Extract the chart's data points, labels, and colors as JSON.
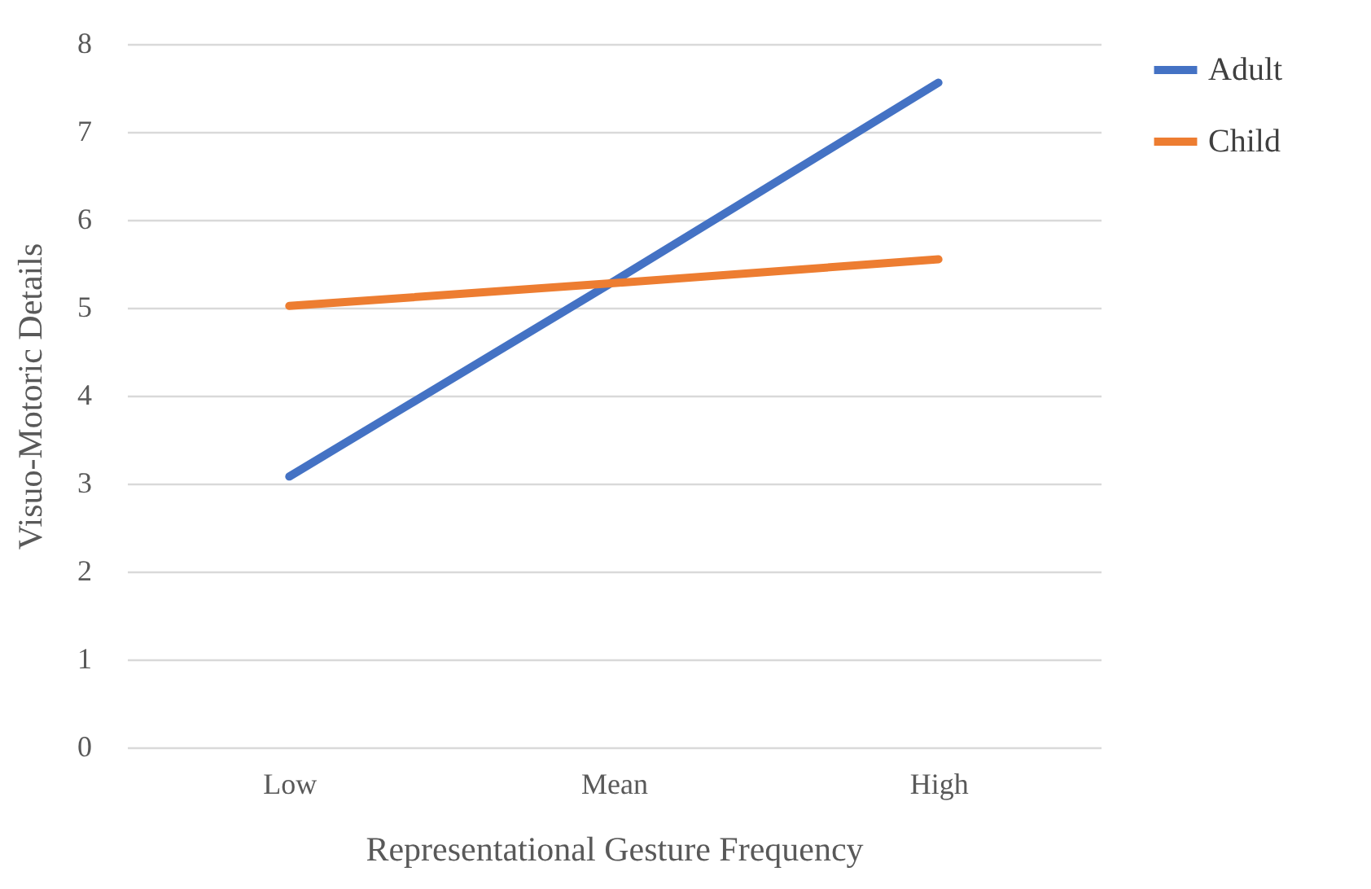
{
  "chart_data": {
    "type": "line",
    "xlabel": "Representational Gesture Frequency",
    "ylabel": "Visuo-Motoric Details",
    "categories": [
      "Low",
      "Mean",
      "High"
    ],
    "series": [
      {
        "name": "Adult",
        "color": "#4472c4",
        "values": [
          3.08,
          5.3,
          7.56
        ]
      },
      {
        "name": "Child",
        "color": "#ed7d31",
        "values": [
          5.02,
          5.28,
          5.55
        ]
      }
    ],
    "ylim": [
      0,
      8
    ],
    "yticks": [
      0,
      1,
      2,
      3,
      4,
      5,
      6,
      7,
      8
    ],
    "grid": "y",
    "legend": "right",
    "marker": "none",
    "line_style": "solid"
  }
}
